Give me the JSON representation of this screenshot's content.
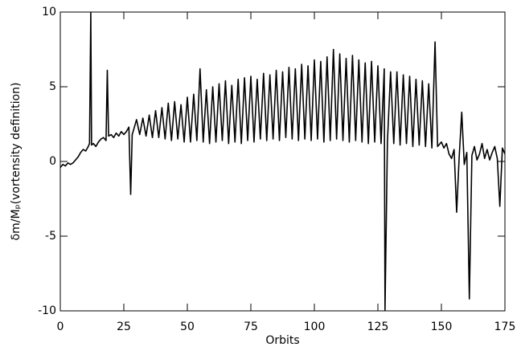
{
  "chart_data": {
    "type": "line",
    "xlabel": "Orbits",
    "ylabel": "δm/Mₚ(vortensity definition)",
    "xlim": [
      0,
      175
    ],
    "ylim": [
      -10,
      10
    ],
    "xticks": [
      0,
      25,
      50,
      75,
      100,
      125,
      150,
      175
    ],
    "yticks": [
      -10,
      -5,
      0,
      5,
      10
    ],
    "color": "#000000",
    "x": [
      0,
      1,
      2,
      3,
      4,
      5,
      6,
      7,
      8,
      9,
      10,
      11,
      11.5,
      12,
      12.3,
      13,
      14,
      15,
      16,
      17,
      18,
      18.5,
      19,
      20,
      21,
      22,
      23,
      24,
      25,
      26,
      27,
      27.7,
      28.3,
      29,
      30,
      31.25,
      32.5,
      33.75,
      35,
      36.25,
      37.5,
      38.75,
      40,
      41.25,
      42.5,
      43.75,
      45,
      46.25,
      47.5,
      48.75,
      50,
      51.25,
      52.5,
      53.75,
      55,
      56.25,
      57.5,
      58.75,
      60,
      61.25,
      62.5,
      63.75,
      65,
      66.25,
      67.5,
      68.75,
      70,
      71.25,
      72.5,
      73.75,
      75,
      76.25,
      77.5,
      78.75,
      80,
      81.25,
      82.5,
      83.75,
      85,
      86.25,
      87.5,
      88.75,
      90,
      91.25,
      92.5,
      93.75,
      95,
      96.25,
      97.5,
      98.75,
      100,
      101.25,
      102.5,
      103.75,
      105,
      106.25,
      107.5,
      108.75,
      110,
      111.25,
      112.5,
      113.75,
      115,
      116.25,
      117.5,
      118.75,
      120,
      121.25,
      122.5,
      123.75,
      125,
      126.25,
      127.5,
      127.8,
      128.75,
      130,
      131.25,
      132.5,
      133.75,
      135,
      136.25,
      137.5,
      138.75,
      140,
      141.25,
      142.5,
      143.75,
      145,
      146.25,
      147.5,
      148.5,
      150,
      151,
      152,
      153,
      154,
      155,
      156,
      157,
      158,
      159,
      160,
      161,
      162,
      163,
      164,
      165,
      166,
      167,
      168,
      169,
      170,
      171,
      172,
      173,
      174,
      175
    ],
    "values": [
      -0.4,
      -0.2,
      -0.3,
      -0.1,
      -0.2,
      -0.1,
      0.1,
      0.3,
      0.6,
      0.8,
      0.7,
      1.0,
      1.2,
      10,
      1.1,
      1.2,
      1.0,
      1.3,
      1.5,
      1.6,
      1.4,
      6.1,
      1.7,
      1.8,
      1.6,
      1.9,
      1.7,
      2.0,
      1.8,
      2.0,
      2.3,
      -2.2,
      1.8,
      2.2,
      2.8,
      1.8,
      2.9,
      1.7,
      3.1,
      1.6,
      3.4,
      1.6,
      3.6,
      1.5,
      3.9,
      1.4,
      4.0,
      1.5,
      3.8,
      1.3,
      4.3,
      1.3,
      4.5,
      1.4,
      6.2,
      1.3,
      4.8,
      1.2,
      5.0,
      1.3,
      5.2,
      1.4,
      5.4,
      1.2,
      5.1,
      1.3,
      5.5,
      1.2,
      5.6,
      1.4,
      5.7,
      1.3,
      5.5,
      1.5,
      5.9,
      1.4,
      5.8,
      1.5,
      6.1,
      1.4,
      6.0,
      1.6,
      6.3,
      1.5,
      6.2,
      1.4,
      6.5,
      1.5,
      6.4,
      1.4,
      6.8,
      1.5,
      6.7,
      1.3,
      7.0,
      1.4,
      7.5,
      1.5,
      7.2,
      1.4,
      6.9,
      1.3,
      7.1,
      1.4,
      6.8,
      1.3,
      6.6,
      1.2,
      6.7,
      1.3,
      6.4,
      1.2,
      6.2,
      -10,
      1.3,
      6.0,
      1.2,
      6.0,
      1.1,
      5.8,
      1.2,
      5.7,
      1.0,
      5.5,
      1.1,
      5.4,
      1.0,
      5.2,
      0.9,
      8.0,
      1.0,
      1.3,
      0.9,
      1.2,
      0.5,
      0.2,
      0.8,
      -3.4,
      0.3,
      3.3,
      -0.2,
      0.6,
      -9.2,
      0.4,
      1.0,
      0.1,
      0.5,
      1.2,
      0.2,
      0.8,
      0.1,
      0.6,
      1.0,
      0.2,
      -3.0,
      0.9,
      0.5
    ]
  }
}
